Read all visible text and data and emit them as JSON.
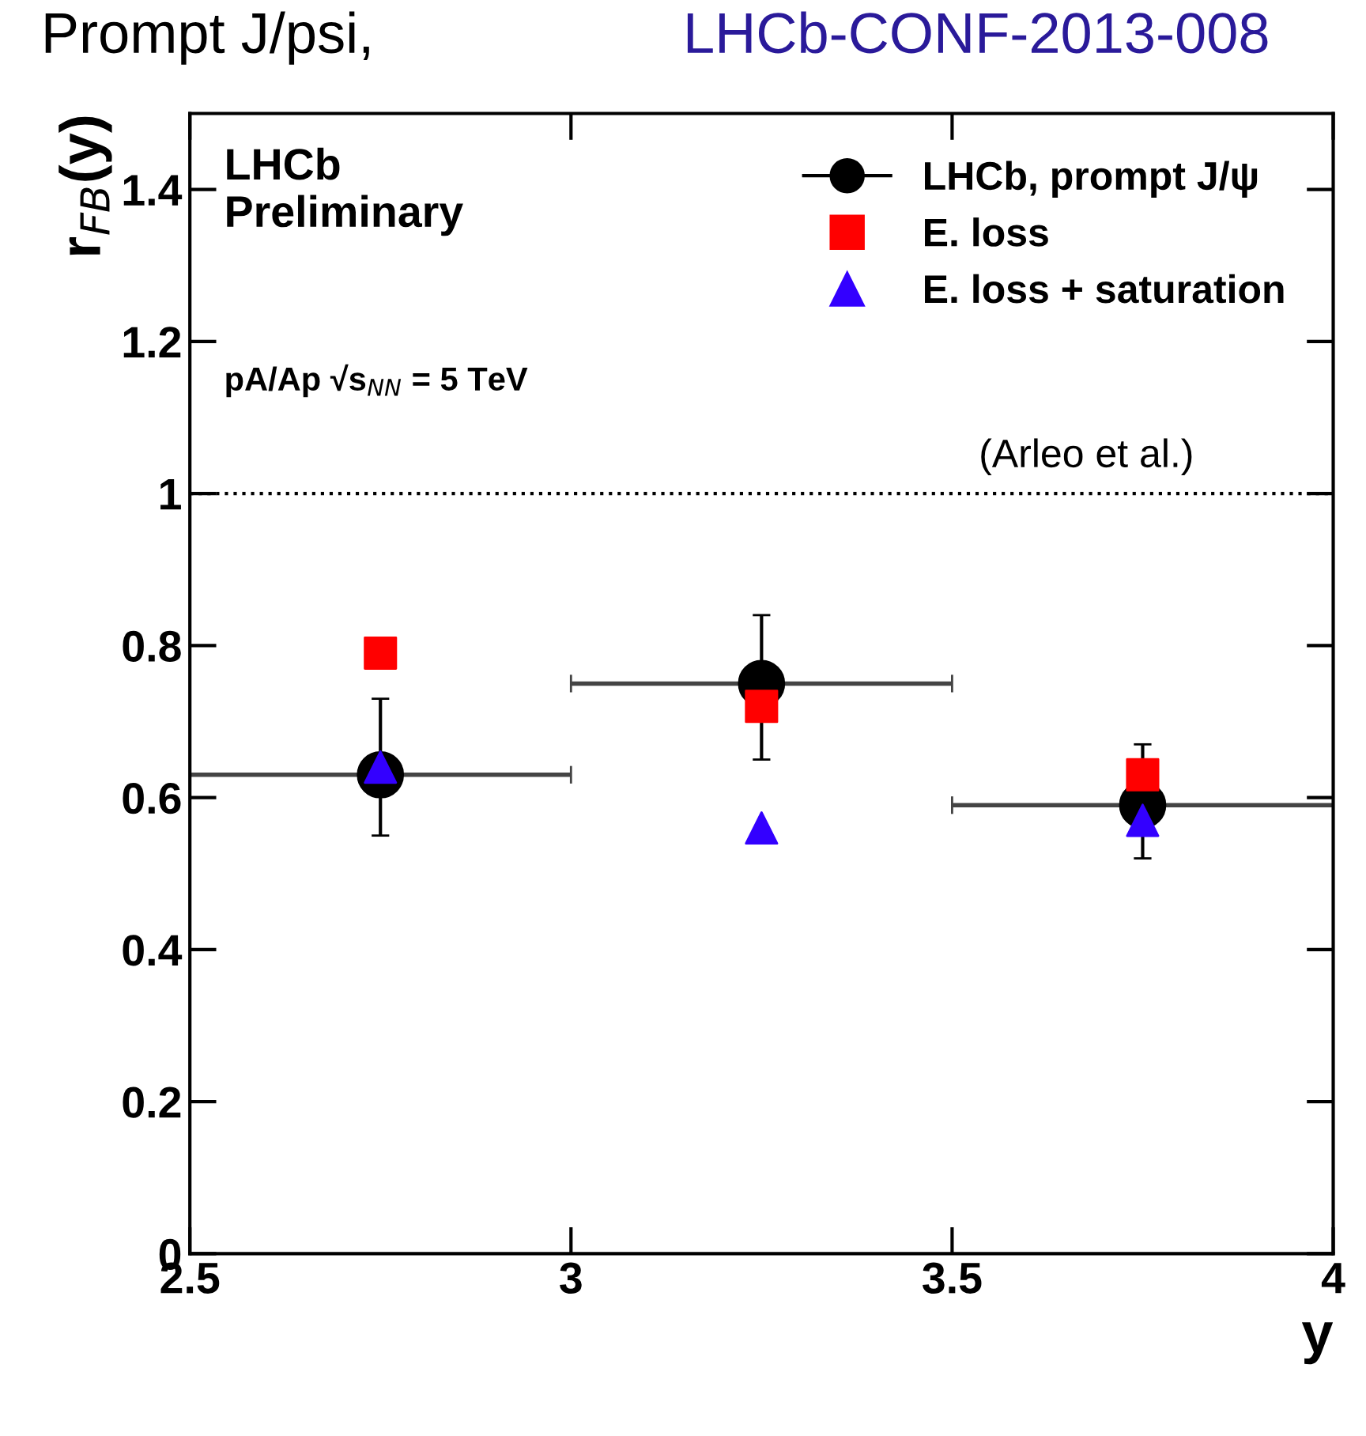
{
  "chart_data": {
    "type": "scatter",
    "title": "Prompt J/psi,",
    "subtitle": "LHCb-CONF-2013-008",
    "xlabel": "y",
    "ylabel": "r$_{FB}$(y)",
    "annotations": [
      "LHCb\nPreliminary",
      "pA/Ap √s$_{NN}$ = 5 TeV",
      "(Arleo et al.)"
    ],
    "series": [
      {
        "name": "LHCb, prompt J/ψ",
        "color": "#000000",
        "marker": "circle",
        "x": [
          2.75,
          3.25,
          3.75
        ],
        "values": [
          0.63,
          0.75,
          0.59
        ],
        "errors": [
          [
            0.55,
            0.73
          ],
          [
            0.65,
            0.84
          ],
          [
            0.52,
            0.67
          ]
        ],
        "xerrors": [
          [
            2.5,
            3.0
          ],
          [
            3.0,
            3.5
          ],
          [
            3.5,
            4.0
          ]
        ]
      },
      {
        "name": "E. loss",
        "color": "#ff0000",
        "marker": "square",
        "x": [
          2.75,
          3.25,
          3.75
        ],
        "values": [
          0.79,
          0.72,
          0.63
        ]
      },
      {
        "name": "E. loss + saturation",
        "color": "#3300ff",
        "marker": "triangle",
        "x": [
          2.75,
          3.25,
          3.75
        ],
        "values": [
          0.64,
          0.56,
          0.57
        ]
      }
    ],
    "xlim": [
      2.5,
      4
    ],
    "xticks": [
      2.5,
      3,
      3.5,
      4
    ],
    "ylim": [
      0,
      1.5
    ],
    "yticks": [
      0,
      0.2,
      0.4,
      0.6,
      0.8,
      1,
      1.2,
      1.4
    ],
    "ref_lines": [
      {
        "axis": "y",
        "value": 1,
        "label": null,
        "color": "#000000",
        "line_style": "dotted"
      }
    ],
    "grid": false,
    "legend": "top right"
  }
}
